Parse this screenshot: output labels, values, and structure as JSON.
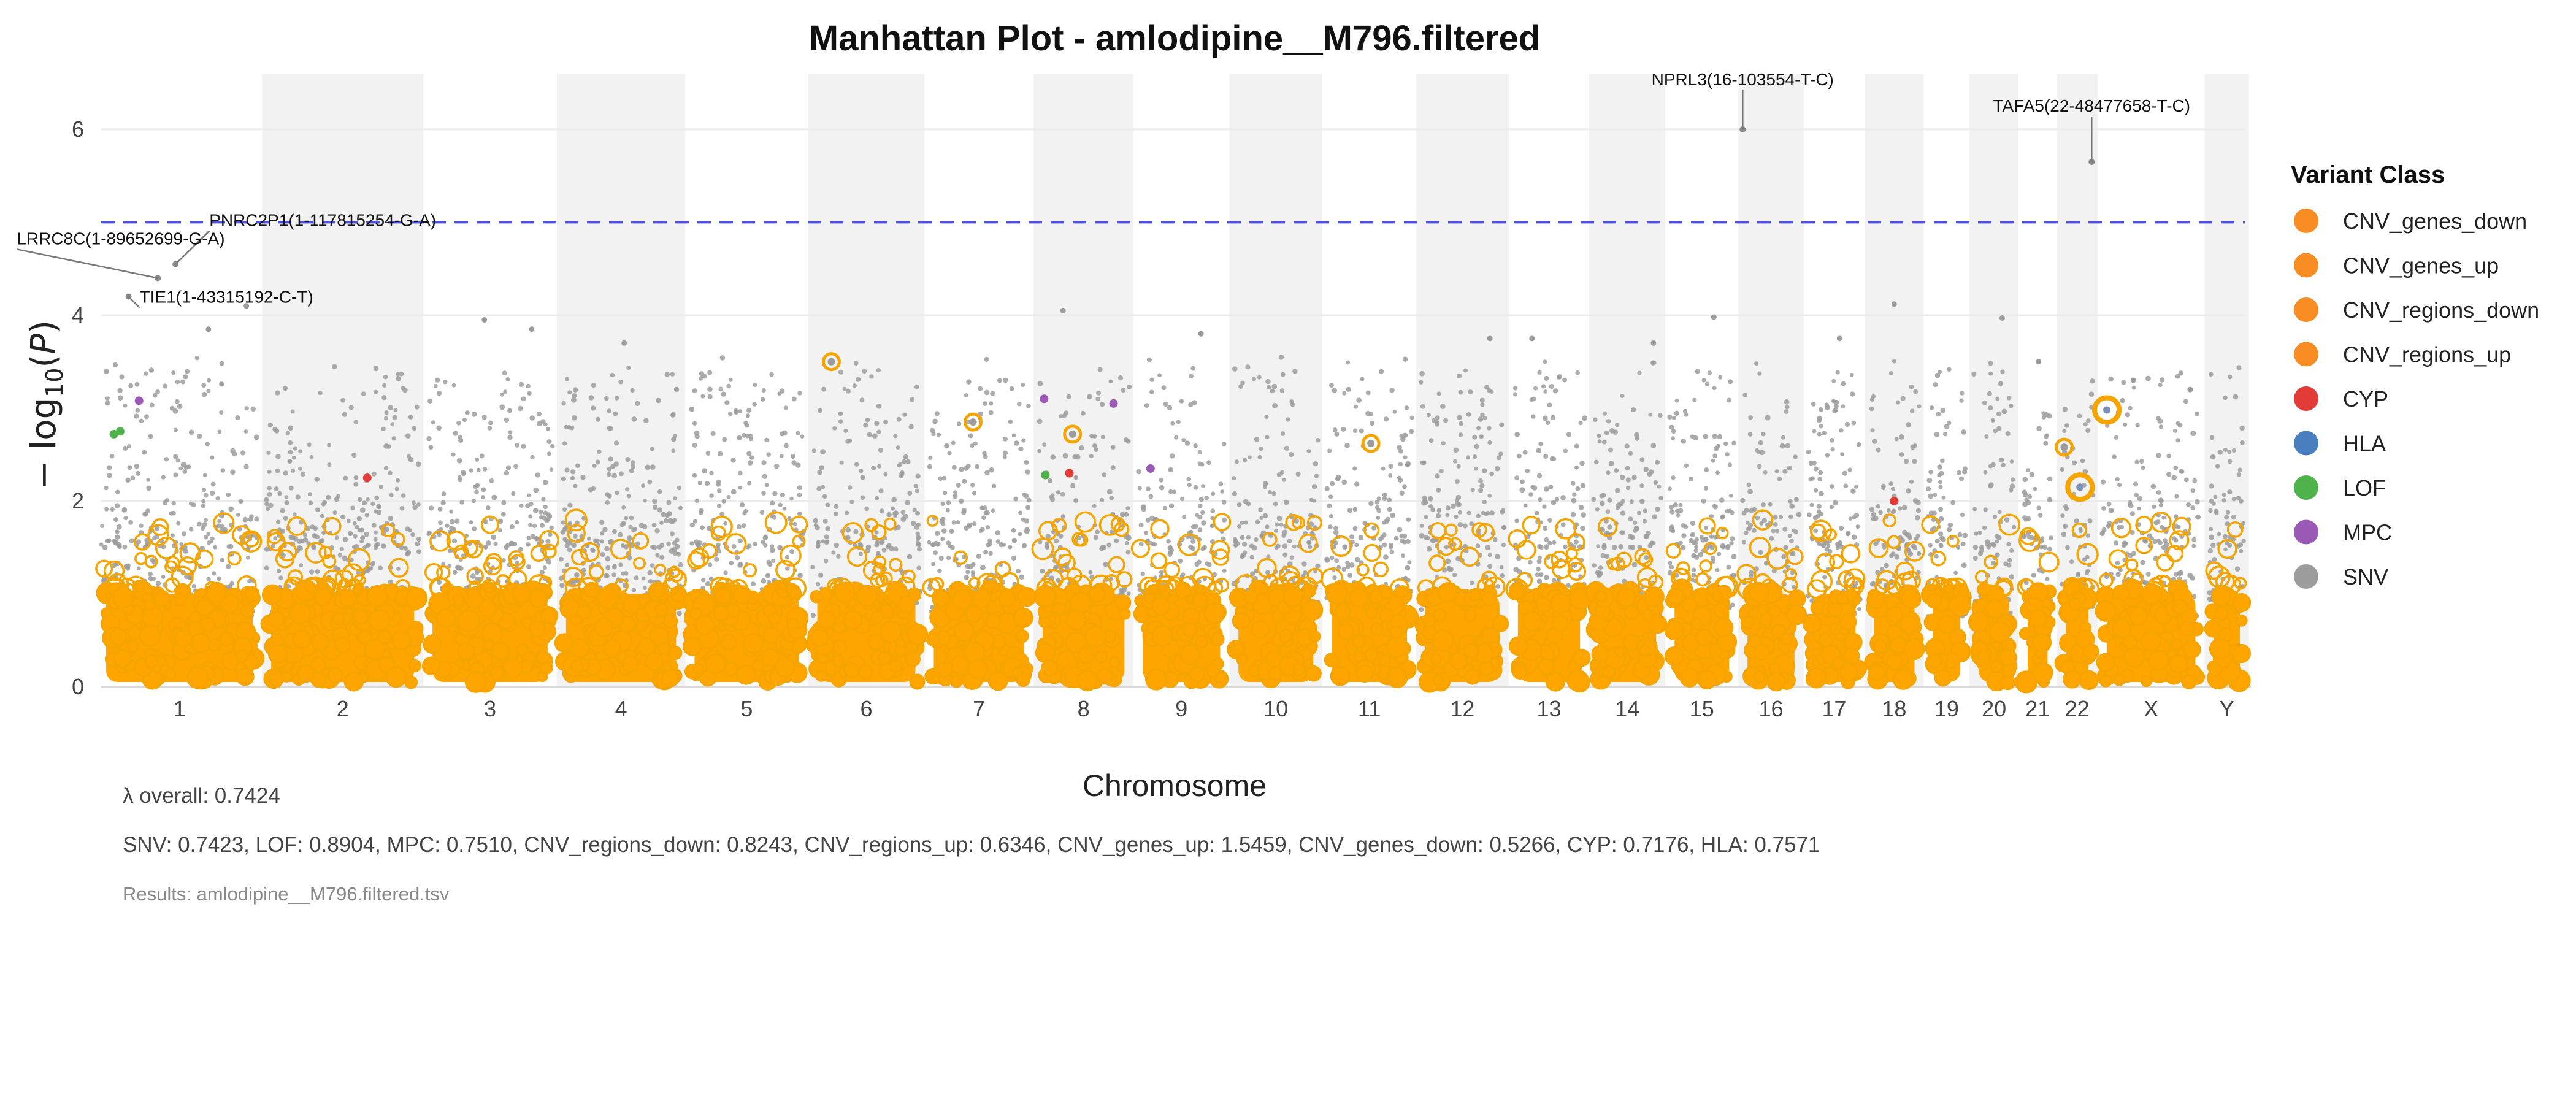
{
  "chart_data": {
    "type": "scatter",
    "subtype": "manhattan",
    "title": "Manhattan Plot - amlodipine__M796.filtered",
    "xlabel": "Chromosome",
    "ylabel_parts": {
      "prefix": "− log",
      "sub": "10",
      "mid": "(",
      "var": "P",
      "suffix": ")"
    },
    "ylim": [
      0,
      6.6
    ],
    "yticks": [
      0,
      2,
      4,
      6
    ],
    "significance_threshold": 5.0,
    "chromosomes": [
      {
        "label": "1",
        "size": 248,
        "shaded": false
      },
      {
        "label": "2",
        "size": 242,
        "shaded": true
      },
      {
        "label": "3",
        "size": 198,
        "shaded": false
      },
      {
        "label": "4",
        "size": 190,
        "shaded": true
      },
      {
        "label": "5",
        "size": 181,
        "shaded": false
      },
      {
        "label": "6",
        "size": 171,
        "shaded": true
      },
      {
        "label": "7",
        "size": 159,
        "shaded": false
      },
      {
        "label": "8",
        "size": 145,
        "shaded": true
      },
      {
        "label": "9",
        "size": 138,
        "shaded": false
      },
      {
        "label": "10",
        "size": 134,
        "shaded": true
      },
      {
        "label": "11",
        "size": 135,
        "shaded": false
      },
      {
        "label": "12",
        "size": 133,
        "shaded": true
      },
      {
        "label": "13",
        "size": 114,
        "shaded": false
      },
      {
        "label": "14",
        "size": 107,
        "shaded": true
      },
      {
        "label": "15",
        "size": 102,
        "shaded": false
      },
      {
        "label": "16",
        "size": 90,
        "shaded": true
      },
      {
        "label": "17",
        "size": 83,
        "shaded": false
      },
      {
        "label": "18",
        "size": 80,
        "shaded": true
      },
      {
        "label": "19",
        "size": 59,
        "shaded": false
      },
      {
        "label": "20",
        "size": 64,
        "shaded": true
      },
      {
        "label": "21",
        "size": 47,
        "shaded": false
      },
      {
        "label": "22",
        "size": 51,
        "shaded": true
      },
      {
        "label": "X",
        "size": 156,
        "shaded": false
      },
      {
        "label": "Y",
        "size": 57,
        "shaded": true
      }
    ],
    "annotations": [
      {
        "label": "PNRC2P1(1-117815254-G-A)",
        "chrom": "1",
        "pos": 117.8,
        "p": 4.55
      },
      {
        "label": "LRRC8C(1-89652699-G-A)",
        "chrom": "1",
        "pos": 89.7,
        "p": 4.4
      },
      {
        "label": "TIE1(1-43315192-C-T)",
        "chrom": "1",
        "pos": 43.3,
        "p": 4.2
      },
      {
        "label": "NPRL3(16-103554-T-C)",
        "chrom": "16",
        "pos": 0.1,
        "p": 6.0
      },
      {
        "label": "TAFA5(22-48477658-T-C)",
        "chrom": "22",
        "pos": 48.5,
        "p": 5.65
      }
    ],
    "highlight_points": [
      {
        "class": "CNV_regions_up",
        "chrom": "6",
        "pos": 30,
        "p": 3.5
      },
      {
        "class": "CNV_genes_up",
        "chrom": "X",
        "pos": 8,
        "p": 2.98,
        "size": "large"
      },
      {
        "class": "CNV_genes_up",
        "chrom": "22",
        "pos": 30,
        "p": 2.15,
        "size": "large"
      },
      {
        "class": "CNV_genes_up",
        "chrom": "7",
        "pos": 70,
        "p": 2.85
      },
      {
        "class": "CNV_genes_up",
        "chrom": "8",
        "pos": 55,
        "p": 2.72
      },
      {
        "class": "CNV_genes_up",
        "chrom": "11",
        "pos": 70,
        "p": 2.62
      },
      {
        "class": "CNV_genes_up",
        "chrom": "22",
        "pos": 5,
        "p": 2.58
      },
      {
        "class": "MPC",
        "chrom": "1",
        "pos": 60,
        "p": 3.08
      },
      {
        "class": "MPC",
        "chrom": "9",
        "pos": 20,
        "p": 2.35
      },
      {
        "class": "MPC",
        "chrom": "8",
        "pos": 10,
        "p": 3.1
      },
      {
        "class": "MPC",
        "chrom": "8",
        "pos": 120,
        "p": 3.05
      },
      {
        "class": "LOF",
        "chrom": "1",
        "pos": 20,
        "p": 2.72
      },
      {
        "class": "LOF",
        "chrom": "1",
        "pos": 30,
        "p": 2.75
      },
      {
        "class": "LOF",
        "chrom": "8",
        "pos": 12,
        "p": 2.28
      },
      {
        "class": "CYP",
        "chrom": "2",
        "pos": 160,
        "p": 2.25
      },
      {
        "class": "CYP",
        "chrom": "8",
        "pos": 50,
        "p": 2.3
      },
      {
        "class": "CYP",
        "chrom": "18",
        "pos": 40,
        "p": 2.0
      }
    ],
    "top_snvs": [
      {
        "chrom": "1",
        "pos": 170,
        "p": 3.85
      },
      {
        "chrom": "1",
        "pos": 230,
        "p": 4.1
      },
      {
        "chrom": "3",
        "pos": 90,
        "p": 3.95
      },
      {
        "chrom": "3",
        "pos": 165,
        "p": 3.85
      },
      {
        "chrom": "4",
        "pos": 100,
        "p": 3.7
      },
      {
        "chrom": "8",
        "pos": 40,
        "p": 4.05
      },
      {
        "chrom": "9",
        "pos": 100,
        "p": 3.8
      },
      {
        "chrom": "12",
        "pos": 110,
        "p": 3.75
      },
      {
        "chrom": "13",
        "pos": 30,
        "p": 3.75
      },
      {
        "chrom": "14",
        "pos": 95,
        "p": 3.7
      },
      {
        "chrom": "15",
        "pos": 70,
        "p": 3.98
      },
      {
        "chrom": "17",
        "pos": 50,
        "p": 3.75
      },
      {
        "chrom": "18",
        "pos": 40,
        "p": 4.12
      },
      {
        "chrom": "20",
        "pos": 45,
        "p": 3.97
      },
      {
        "chrom": "21",
        "pos": 25,
        "p": 3.5
      },
      {
        "chrom": "X",
        "pos": 50,
        "p": 3.3
      },
      {
        "chrom": "X",
        "pos": 140,
        "p": 3.2
      }
    ],
    "legend": {
      "title": "Variant Class",
      "position": "right",
      "items": [
        {
          "label": "CNV_genes_down",
          "color": "#f68c22"
        },
        {
          "label": "CNV_genes_up",
          "color": "#f68c22"
        },
        {
          "label": "CNV_regions_down",
          "color": "#f68c22"
        },
        {
          "label": "CNV_regions_up",
          "color": "#f68c22"
        },
        {
          "label": "CYP",
          "color": "#e23b38"
        },
        {
          "label": "HLA",
          "color": "#4a7fbf"
        },
        {
          "label": "LOF",
          "color": "#4fb24b"
        },
        {
          "label": "MPC",
          "color": "#9b59b6"
        },
        {
          "label": "SNV",
          "color": "#9c9c9c"
        }
      ]
    },
    "colors": {
      "snv": "#9c9c9c",
      "cnv_ring": "#f5a400",
      "cnv_fill": "#ffa500",
      "threshold_line": "#4f4fe0",
      "shade": "#f2f2f2",
      "grid": "#ebebeb"
    }
  },
  "footer": {
    "lambda_overall": "λ overall: 0.7424",
    "lambda_by_class": "SNV: 0.7423, LOF: 0.8904, MPC: 0.7510, CNV_regions_down: 0.8243, CNV_regions_up: 0.6346, CNV_genes_up: 1.5459, CNV_genes_down: 0.5266, CYP: 0.7176, HLA: 0.7571",
    "results_file": "Results: amlodipine__M796.filtered.tsv"
  }
}
